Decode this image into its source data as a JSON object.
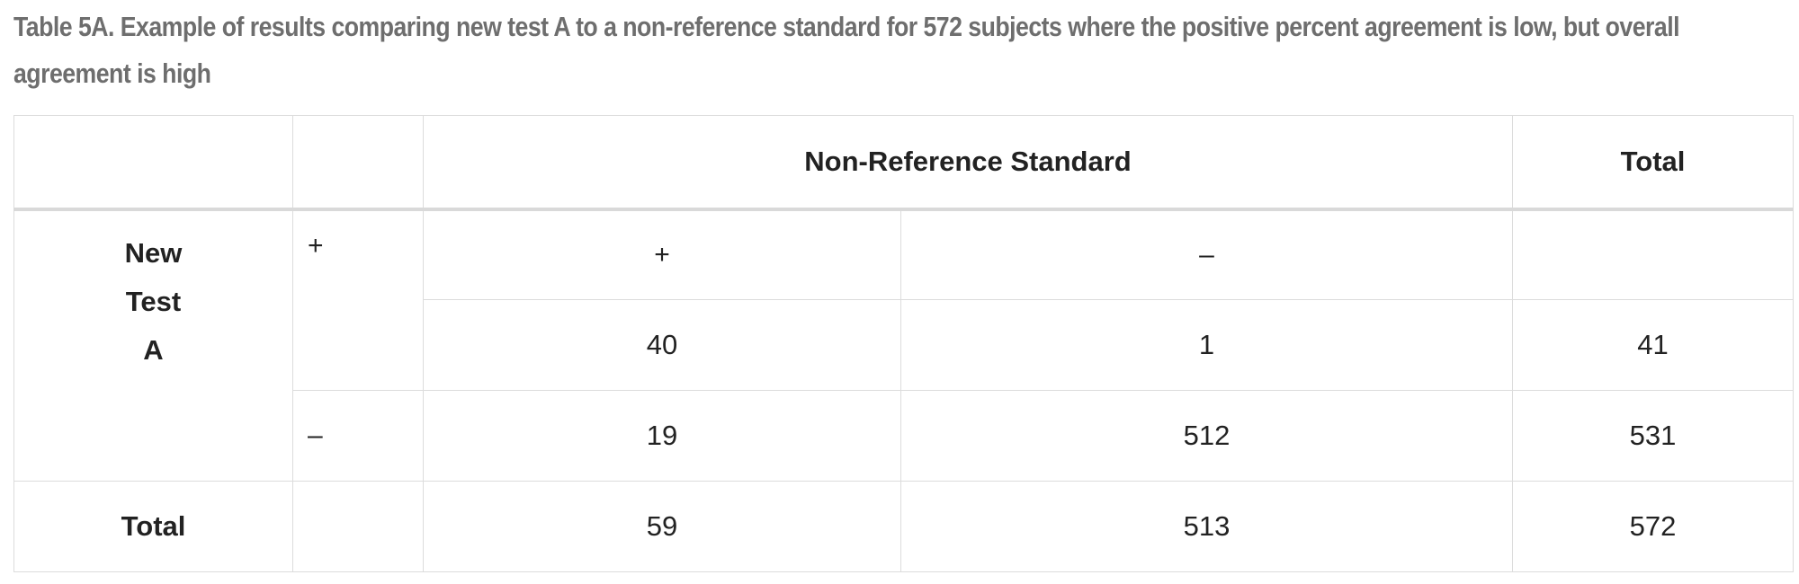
{
  "caption": "Table 5A. Example of results comparing new test A to a non-reference standard for 572 subjects where the positive percent agreement is low, but overall agreement is high",
  "table": {
    "header_group": "Non-Reference Standard",
    "header_total": "Total",
    "row_group_label": [
      "New",
      "Test",
      "A"
    ],
    "col_plus": "+",
    "col_minus": "–",
    "row_plus": "+",
    "row_minus": "–",
    "rows": {
      "plus": {
        "pos": "40",
        "neg": "1",
        "total": "41"
      },
      "minus": {
        "pos": "19",
        "neg": "512",
        "total": "531"
      },
      "total": {
        "label": "Total",
        "pos": "59",
        "neg": "513",
        "total": "572"
      }
    }
  }
}
